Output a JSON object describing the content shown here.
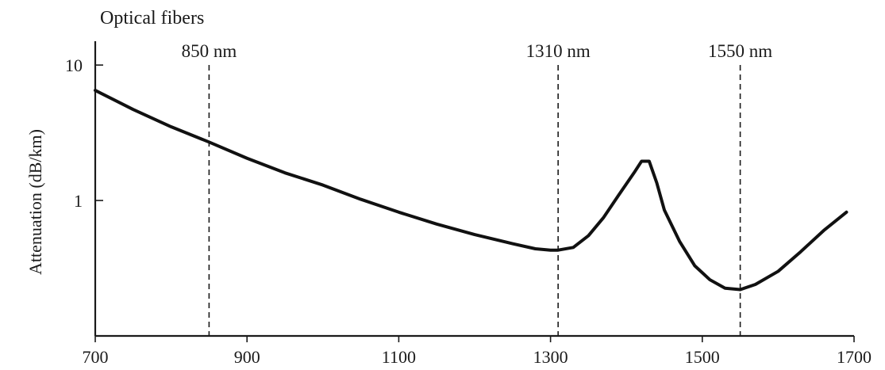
{
  "chart_data": {
    "type": "line",
    "title": "Optical fibers",
    "xlabel": "",
    "ylabel": "Attenuation (dB/km)",
    "xlim": [
      700,
      1700
    ],
    "ylim": [
      0.1,
      15
    ],
    "y_scale": "log",
    "grid": false,
    "x_ticks": [
      700,
      900,
      1100,
      1300,
      1500,
      1700
    ],
    "x_tick_labels": [
      "700",
      "900",
      "1100",
      "1300",
      "1500",
      "1700"
    ],
    "y_ticks": [
      1,
      10
    ],
    "y_tick_labels": [
      "1",
      "10"
    ],
    "markers": [
      {
        "x": 850,
        "label": "850 nm"
      },
      {
        "x": 1310,
        "label": "1310 nm"
      },
      {
        "x": 1550,
        "label": "1550 nm"
      }
    ],
    "series": [
      {
        "x": [
          700,
          750,
          800,
          850,
          900,
          950,
          1000,
          1050,
          1100,
          1150,
          1200,
          1250,
          1280,
          1300,
          1310,
          1330,
          1350,
          1370,
          1390,
          1410,
          1420,
          1430,
          1440,
          1450,
          1470,
          1490,
          1510,
          1530,
          1550,
          1570,
          1600,
          1630,
          1660,
          1690
        ],
        "values": [
          6.5,
          4.7,
          3.5,
          2.7,
          2.05,
          1.6,
          1.3,
          1.02,
          0.82,
          0.67,
          0.56,
          0.48,
          0.44,
          0.43,
          0.43,
          0.45,
          0.55,
          0.75,
          1.1,
          1.6,
          1.95,
          1.95,
          1.35,
          0.85,
          0.5,
          0.33,
          0.26,
          0.225,
          0.22,
          0.24,
          0.3,
          0.42,
          0.6,
          0.82
        ]
      }
    ]
  }
}
